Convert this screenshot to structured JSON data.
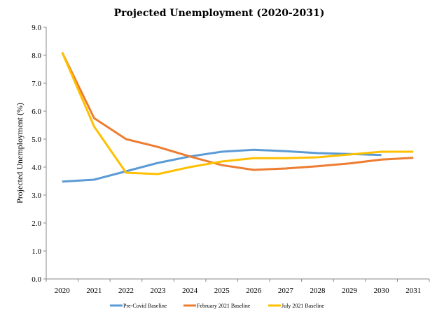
{
  "chart_data": {
    "type": "line",
    "title": "Projected Unemployment (2020-2031)",
    "xlabel": "",
    "ylabel": "Projected Unemployment (%)",
    "categories": [
      "2020",
      "2021",
      "2022",
      "2023",
      "2024",
      "2025",
      "2026",
      "2027",
      "2028",
      "2029",
      "2030",
      "2031"
    ],
    "y_ticks": [
      "0.0",
      "1.0",
      "2.0",
      "3.0",
      "4.0",
      "5.0",
      "6.0",
      "7.0",
      "8.0",
      "9.0"
    ],
    "ylim": [
      0,
      9
    ],
    "grid": false,
    "legend_position": "bottom",
    "series": [
      {
        "name": "Pre-Covid Baseline",
        "color": "#5B9BD5",
        "values": [
          3.48,
          3.55,
          3.85,
          4.15,
          4.38,
          4.55,
          4.62,
          4.57,
          4.5,
          4.47,
          4.43,
          null
        ]
      },
      {
        "name": "February 2021 Baseline",
        "color": "#ED7D31",
        "values": [
          8.1,
          5.75,
          5.0,
          4.72,
          4.38,
          4.07,
          3.9,
          3.95,
          4.03,
          4.13,
          4.27,
          4.33
        ]
      },
      {
        "name": "July 2021 Baseline",
        "color": "#FFC000",
        "values": [
          8.1,
          5.45,
          3.8,
          3.75,
          4.0,
          4.2,
          4.32,
          4.32,
          4.35,
          4.45,
          4.55,
          4.55
        ]
      }
    ]
  }
}
